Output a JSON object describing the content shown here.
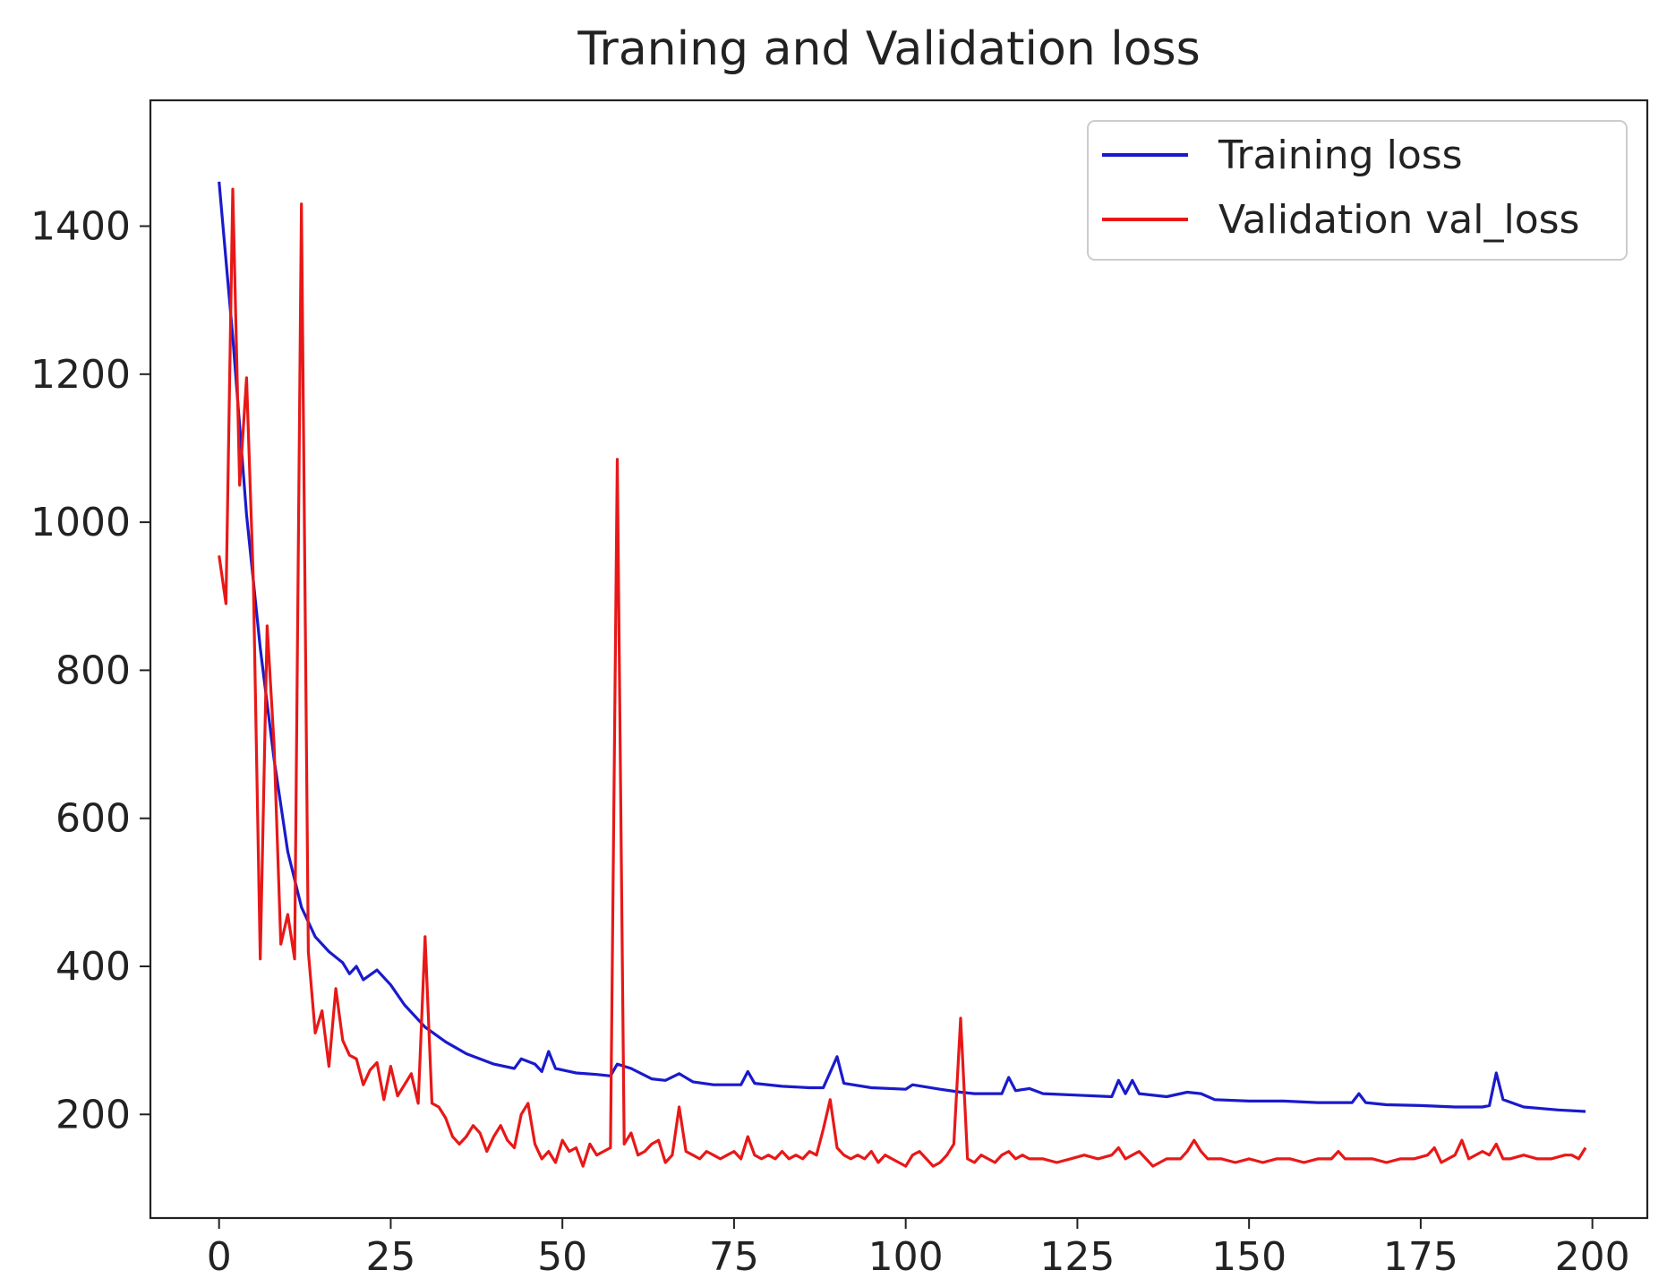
{
  "chart_data": {
    "type": "line",
    "title": "Traning and Validation loss",
    "xlabel": "",
    "ylabel": "",
    "xlim": [
      -10,
      208
    ],
    "ylim": [
      60,
      1570
    ],
    "x_ticks": [
      0,
      25,
      50,
      75,
      100,
      125,
      150,
      175,
      200
    ],
    "y_ticks": [
      200,
      400,
      600,
      800,
      1000,
      1200,
      1400
    ],
    "grid": false,
    "legend_position": "top-right",
    "series": [
      {
        "name": "Training loss",
        "color": "#1a1acc",
        "points": [
          [
            0,
            1460
          ],
          [
            2,
            1250
          ],
          [
            4,
            1010
          ],
          [
            6,
            830
          ],
          [
            8,
            680
          ],
          [
            10,
            555
          ],
          [
            12,
            480
          ],
          [
            14,
            440
          ],
          [
            16,
            420
          ],
          [
            18,
            405
          ],
          [
            19,
            390
          ],
          [
            20,
            400
          ],
          [
            21,
            382
          ],
          [
            23,
            395
          ],
          [
            25,
            375
          ],
          [
            27,
            348
          ],
          [
            30,
            318
          ],
          [
            33,
            298
          ],
          [
            36,
            282
          ],
          [
            40,
            268
          ],
          [
            43,
            262
          ],
          [
            44,
            275
          ],
          [
            46,
            268
          ],
          [
            47,
            258
          ],
          [
            48,
            285
          ],
          [
            49,
            262
          ],
          [
            52,
            256
          ],
          [
            55,
            254
          ],
          [
            57,
            252
          ],
          [
            58,
            268
          ],
          [
            60,
            262
          ],
          [
            63,
            248
          ],
          [
            65,
            246
          ],
          [
            67,
            255
          ],
          [
            69,
            244
          ],
          [
            72,
            240
          ],
          [
            76,
            240
          ],
          [
            77,
            258
          ],
          [
            78,
            242
          ],
          [
            82,
            238
          ],
          [
            86,
            236
          ],
          [
            88,
            236
          ],
          [
            90,
            278
          ],
          [
            91,
            242
          ],
          [
            95,
            236
          ],
          [
            100,
            234
          ],
          [
            101,
            240
          ],
          [
            105,
            234
          ],
          [
            108,
            230
          ],
          [
            110,
            228
          ],
          [
            114,
            228
          ],
          [
            115,
            250
          ],
          [
            116,
            232
          ],
          [
            118,
            235
          ],
          [
            120,
            228
          ],
          [
            125,
            226
          ],
          [
            130,
            224
          ],
          [
            131,
            246
          ],
          [
            132,
            228
          ],
          [
            133,
            246
          ],
          [
            134,
            228
          ],
          [
            138,
            224
          ],
          [
            141,
            230
          ],
          [
            143,
            228
          ],
          [
            145,
            220
          ],
          [
            150,
            218
          ],
          [
            155,
            218
          ],
          [
            160,
            216
          ],
          [
            165,
            216
          ],
          [
            166,
            228
          ],
          [
            167,
            216
          ],
          [
            170,
            213
          ],
          [
            175,
            212
          ],
          [
            180,
            210
          ],
          [
            184,
            210
          ],
          [
            185,
            212
          ],
          [
            186,
            256
          ],
          [
            187,
            220
          ],
          [
            190,
            210
          ],
          [
            195,
            206
          ],
          [
            199,
            204
          ]
        ]
      },
      {
        "name": "Validation val_loss",
        "color": "#e81818",
        "points": [
          [
            0,
            955
          ],
          [
            1,
            890
          ],
          [
            2,
            1450
          ],
          [
            3,
            1050
          ],
          [
            4,
            1195
          ],
          [
            5,
            920
          ],
          [
            6,
            410
          ],
          [
            7,
            860
          ],
          [
            8,
            700
          ],
          [
            9,
            430
          ],
          [
            10,
            470
          ],
          [
            11,
            410
          ],
          [
            12,
            1430
          ],
          [
            13,
            420
          ],
          [
            14,
            310
          ],
          [
            15,
            340
          ],
          [
            16,
            265
          ],
          [
            17,
            370
          ],
          [
            18,
            300
          ],
          [
            19,
            280
          ],
          [
            20,
            275
          ],
          [
            21,
            240
          ],
          [
            22,
            260
          ],
          [
            23,
            270
          ],
          [
            24,
            220
          ],
          [
            25,
            265
          ],
          [
            26,
            225
          ],
          [
            27,
            240
          ],
          [
            28,
            255
          ],
          [
            29,
            215
          ],
          [
            30,
            440
          ],
          [
            31,
            215
          ],
          [
            32,
            210
          ],
          [
            33,
            195
          ],
          [
            34,
            170
          ],
          [
            35,
            160
          ],
          [
            36,
            170
          ],
          [
            37,
            185
          ],
          [
            38,
            175
          ],
          [
            39,
            150
          ],
          [
            40,
            170
          ],
          [
            41,
            185
          ],
          [
            42,
            165
          ],
          [
            43,
            155
          ],
          [
            44,
            200
          ],
          [
            45,
            215
          ],
          [
            46,
            160
          ],
          [
            47,
            140
          ],
          [
            48,
            150
          ],
          [
            49,
            135
          ],
          [
            50,
            165
          ],
          [
            51,
            150
          ],
          [
            52,
            155
          ],
          [
            53,
            130
          ],
          [
            54,
            160
          ],
          [
            55,
            145
          ],
          [
            56,
            150
          ],
          [
            57,
            155
          ],
          [
            58,
            1085
          ],
          [
            59,
            160
          ],
          [
            60,
            175
          ],
          [
            61,
            145
          ],
          [
            62,
            150
          ],
          [
            63,
            160
          ],
          [
            64,
            165
          ],
          [
            65,
            135
          ],
          [
            66,
            145
          ],
          [
            67,
            210
          ],
          [
            68,
            150
          ],
          [
            69,
            145
          ],
          [
            70,
            140
          ],
          [
            71,
            150
          ],
          [
            72,
            145
          ],
          [
            73,
            140
          ],
          [
            74,
            145
          ],
          [
            75,
            150
          ],
          [
            76,
            140
          ],
          [
            77,
            170
          ],
          [
            78,
            145
          ],
          [
            79,
            140
          ],
          [
            80,
            145
          ],
          [
            81,
            140
          ],
          [
            82,
            150
          ],
          [
            83,
            140
          ],
          [
            84,
            145
          ],
          [
            85,
            140
          ],
          [
            86,
            150
          ],
          [
            87,
            145
          ],
          [
            88,
            180
          ],
          [
            89,
            220
          ],
          [
            90,
            155
          ],
          [
            91,
            145
          ],
          [
            92,
            140
          ],
          [
            93,
            145
          ],
          [
            94,
            140
          ],
          [
            95,
            150
          ],
          [
            96,
            135
          ],
          [
            97,
            145
          ],
          [
            98,
            140
          ],
          [
            99,
            135
          ],
          [
            100,
            130
          ],
          [
            101,
            145
          ],
          [
            102,
            150
          ],
          [
            103,
            140
          ],
          [
            104,
            130
          ],
          [
            105,
            135
          ],
          [
            106,
            145
          ],
          [
            107,
            160
          ],
          [
            108,
            330
          ],
          [
            109,
            140
          ],
          [
            110,
            135
          ],
          [
            111,
            145
          ],
          [
            112,
            140
          ],
          [
            113,
            135
          ],
          [
            114,
            145
          ],
          [
            115,
            150
          ],
          [
            116,
            140
          ],
          [
            117,
            145
          ],
          [
            118,
            140
          ],
          [
            120,
            140
          ],
          [
            122,
            135
          ],
          [
            124,
            140
          ],
          [
            126,
            145
          ],
          [
            128,
            140
          ],
          [
            130,
            145
          ],
          [
            131,
            155
          ],
          [
            132,
            140
          ],
          [
            134,
            150
          ],
          [
            136,
            130
          ],
          [
            138,
            140
          ],
          [
            140,
            140
          ],
          [
            141,
            150
          ],
          [
            142,
            165
          ],
          [
            143,
            150
          ],
          [
            144,
            140
          ],
          [
            146,
            140
          ],
          [
            148,
            135
          ],
          [
            150,
            140
          ],
          [
            152,
            135
          ],
          [
            154,
            140
          ],
          [
            156,
            140
          ],
          [
            158,
            135
          ],
          [
            160,
            140
          ],
          [
            162,
            140
          ],
          [
            163,
            150
          ],
          [
            164,
            140
          ],
          [
            166,
            140
          ],
          [
            168,
            140
          ],
          [
            170,
            135
          ],
          [
            172,
            140
          ],
          [
            174,
            140
          ],
          [
            176,
            145
          ],
          [
            177,
            155
          ],
          [
            178,
            135
          ],
          [
            180,
            145
          ],
          [
            181,
            165
          ],
          [
            182,
            140
          ],
          [
            184,
            150
          ],
          [
            185,
            145
          ],
          [
            186,
            160
          ],
          [
            187,
            140
          ],
          [
            188,
            140
          ],
          [
            190,
            145
          ],
          [
            192,
            140
          ],
          [
            194,
            140
          ],
          [
            196,
            145
          ],
          [
            197,
            145
          ],
          [
            198,
            140
          ],
          [
            199,
            155
          ]
        ]
      }
    ]
  }
}
